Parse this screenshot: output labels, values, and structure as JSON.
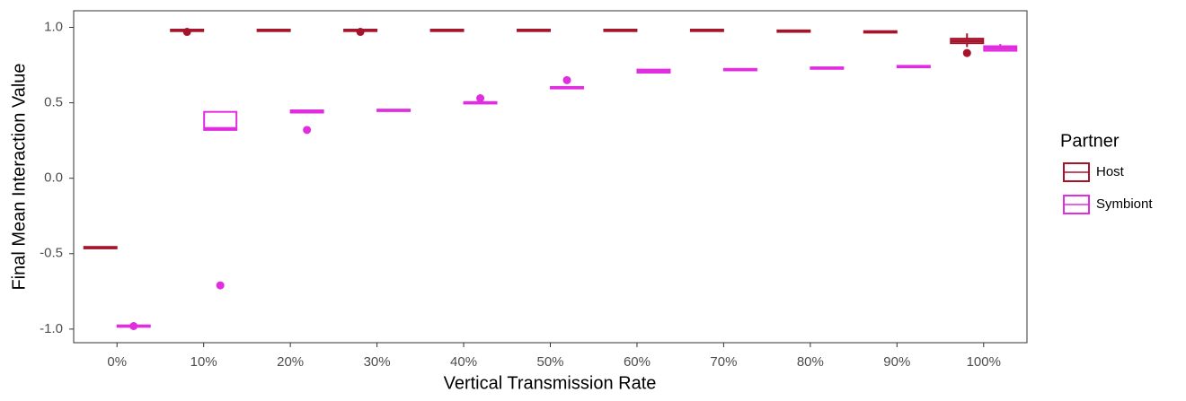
{
  "chart_data": {
    "type": "box",
    "x_label": "Vertical Transmission Rate",
    "y_label": "Final Mean Interaction Value",
    "legend_title": "Partner",
    "legend_position": "right",
    "grid": false,
    "categories": [
      "0%",
      "10%",
      "20%",
      "30%",
      "40%",
      "50%",
      "60%",
      "70%",
      "80%",
      "90%",
      "100%"
    ],
    "ylim": [
      -1.09,
      1.11
    ],
    "yticks": [
      {
        "value": -1,
        "label": "-1.0"
      },
      -0.5,
      {
        "value": 0,
        "label": "0.0"
      },
      0.5,
      {
        "value": 1,
        "label": "1.0"
      }
    ],
    "series": [
      {
        "name": "Host",
        "color": "#a6142b",
        "median": [
          -0.46,
          0.98,
          0.98,
          0.98,
          0.98,
          0.98,
          0.98,
          0.98,
          0.975,
          0.97,
          0.91
        ],
        "q1": [
          -0.465,
          0.975,
          0.975,
          0.975,
          0.975,
          0.975,
          0.975,
          0.975,
          0.97,
          0.965,
          0.895
        ],
        "q3": [
          -0.455,
          0.985,
          0.985,
          0.985,
          0.985,
          0.985,
          0.985,
          0.985,
          0.98,
          0.975,
          0.925
        ],
        "whisker_low": [
          -0.465,
          0.975,
          0.975,
          0.975,
          0.975,
          0.975,
          0.975,
          0.975,
          0.97,
          0.965,
          0.87
        ],
        "whisker_high": [
          -0.455,
          0.985,
          0.985,
          0.985,
          0.985,
          0.985,
          0.985,
          0.985,
          0.98,
          0.975,
          0.96
        ],
        "outliers": [
          [],
          [
            0.97
          ],
          [],
          [
            0.97
          ],
          [],
          [],
          [],
          [],
          [],
          [],
          [
            0.83
          ]
        ]
      },
      {
        "name": "Symbiont",
        "color": "#e02de0",
        "median": [
          -0.98,
          0.33,
          0.44,
          0.45,
          0.5,
          0.6,
          0.71,
          0.72,
          0.73,
          0.74,
          0.86
        ],
        "q1": [
          -0.985,
          0.32,
          0.435,
          0.445,
          0.495,
          0.595,
          0.7,
          0.715,
          0.725,
          0.735,
          0.845
        ],
        "q3": [
          -0.975,
          0.44,
          0.45,
          0.455,
          0.505,
          0.605,
          0.72,
          0.725,
          0.735,
          0.745,
          0.875
        ],
        "whisker_low": [
          -0.985,
          0.32,
          0.435,
          0.445,
          0.495,
          0.595,
          0.7,
          0.715,
          0.725,
          0.735,
          0.84
        ],
        "whisker_high": [
          -0.975,
          0.44,
          0.45,
          0.455,
          0.505,
          0.605,
          0.72,
          0.725,
          0.735,
          0.745,
          0.89
        ],
        "outliers": [
          [
            -0.98
          ],
          [
            -0.71
          ],
          [
            0.32
          ],
          [],
          [
            0.53
          ],
          [
            0.65
          ],
          [],
          [],
          [],
          [],
          []
        ]
      }
    ]
  }
}
